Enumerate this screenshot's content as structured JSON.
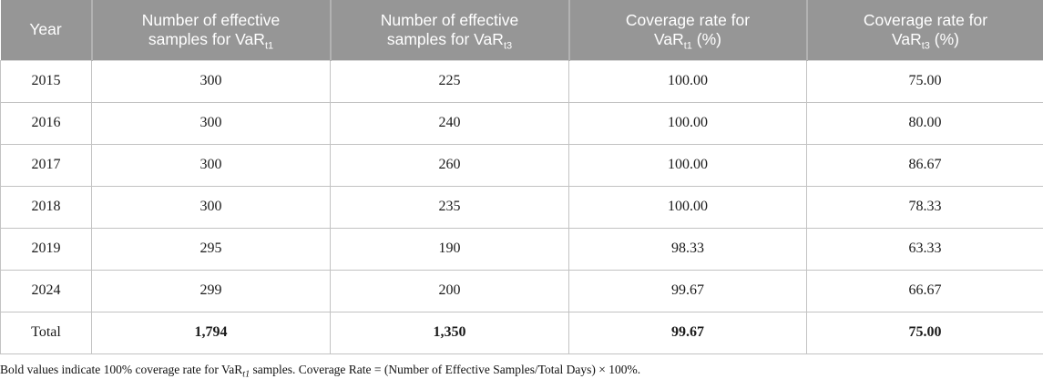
{
  "table": {
    "columns": [
      {
        "line1": "Year",
        "line2": "",
        "sub": "",
        "after": ""
      },
      {
        "line1": "Number of effective",
        "line2": "samples for VaR",
        "sub": "t1",
        "after": ""
      },
      {
        "line1": "Number of effective",
        "line2": "samples for VaR",
        "sub": "t3",
        "after": ""
      },
      {
        "line1": "Coverage rate for",
        "line2": "VaR",
        "sub": "t1",
        "after": " (%)"
      },
      {
        "line1": "Coverage rate for",
        "line2": "VaR",
        "sub": "t3",
        "after": " (%)"
      }
    ],
    "rows": [
      {
        "cells": [
          "2015",
          "300",
          "225",
          "100.00",
          "75.00"
        ],
        "bold": false
      },
      {
        "cells": [
          "2016",
          "300",
          "240",
          "100.00",
          "80.00"
        ],
        "bold": false
      },
      {
        "cells": [
          "2017",
          "300",
          "260",
          "100.00",
          "86.67"
        ],
        "bold": false
      },
      {
        "cells": [
          "2018",
          "300",
          "235",
          "100.00",
          "78.33"
        ],
        "bold": false
      },
      {
        "cells": [
          "2019",
          "295",
          "190",
          "98.33",
          "63.33"
        ],
        "bold": false
      },
      {
        "cells": [
          "2024",
          "299",
          "200",
          "99.67",
          "66.67"
        ],
        "bold": false
      },
      {
        "cells": [
          "Total",
          "1,794",
          "1,350",
          "99.67",
          "75.00"
        ],
        "bold": true
      }
    ]
  },
  "footnote": {
    "part1": "Bold values indicate 100% coverage rate for VaR",
    "sub": "t1",
    "part2": " samples. Coverage Rate = (Number of Effective Samples/Total Days) × 100%."
  },
  "colors": {
    "header_bg": "#969696",
    "header_text": "#ffffff",
    "header_divider": "#b2b2b2",
    "body_border": "#c3c3c3",
    "body_text": "#1a1a1a"
  }
}
